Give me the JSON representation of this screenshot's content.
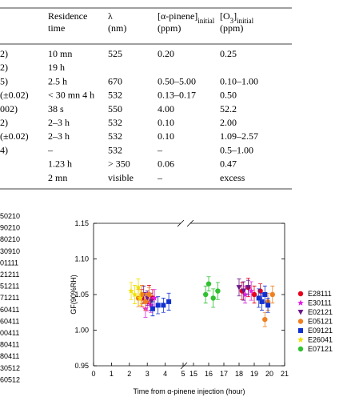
{
  "table": {
    "columns": [
      {
        "line1": [
          {
            "text": "Residence"
          }
        ],
        "line2": "time"
      },
      {
        "line1": [
          {
            "text": "λ"
          }
        ],
        "line2": "(nm)"
      },
      {
        "line1": [
          {
            "text": "[α-pinene]"
          },
          {
            "sub": "initial"
          }
        ],
        "line2": "(ppm)"
      },
      {
        "line1": [
          {
            "text": "[O"
          },
          {
            "sub": "3"
          },
          {
            "text": "]"
          },
          {
            "sub": "initial"
          }
        ],
        "line2": "(ppm)"
      }
    ],
    "rows": [
      [
        "2)",
        "10 mn",
        "525",
        "0.20",
        "0.25"
      ],
      [
        "2)",
        "19 h",
        null,
        null,
        null
      ],
      [
        "5)",
        "2.5 h",
        "670",
        "0.50–5.00",
        "0.10–1.00"
      ],
      [
        "(±0.02)",
        "< 30 mn 4 h",
        "532",
        "0.13–0.17",
        "0.50"
      ],
      [
        "002)",
        "38 s",
        "550",
        "4.00",
        "52.2"
      ],
      [
        "2)",
        "2–3 h",
        "532",
        "0.10",
        "2.00"
      ],
      [
        "(±0.02)",
        "2–3 h",
        "532",
        "0.10",
        "1.09–2.57"
      ],
      [
        "4)",
        "–",
        "532",
        "–",
        "0.5–1.00"
      ],
      [
        null,
        "1.23 h",
        "> 350",
        "0.06",
        "0.47"
      ],
      [
        null,
        "2 mn",
        "visible",
        "–",
        "excess"
      ]
    ]
  },
  "side_labels": [
    "50210",
    "90210",
    "80210",
    "30910",
    "01111",
    "21211",
    "51211",
    "71211",
    "60411",
    "60411",
    "00411",
    "80411",
    "80411",
    "30512",
    "60512"
  ],
  "chart_data": {
    "type": "scatter",
    "y_label": "GF(90%RH)",
    "x_label": "Time from α-pinene injection (hour)",
    "ylim": [
      0.95,
      1.15
    ],
    "yticks": [
      {
        "value": 0.95,
        "label": "0.95"
      },
      {
        "value": 1.0,
        "label": "1.00"
      },
      {
        "value": 1.05,
        "label": "1.05"
      },
      {
        "value": 1.1,
        "label": "1.10"
      },
      {
        "value": 1.15,
        "label": "1.15"
      }
    ],
    "x_segments": [
      {
        "xlim": [
          0,
          5.2
        ],
        "xticks": [
          0,
          1,
          2,
          3,
          4,
          5
        ]
      },
      {
        "xlim": [
          14.9,
          21
        ],
        "xticks": [
          15,
          16,
          17,
          18,
          19,
          20,
          21
        ]
      }
    ],
    "series": [
      {
        "name": "E28111",
        "color": "#e8001c",
        "marker": "circle",
        "x": [
          2.7,
          2.9,
          3.1,
          3.3,
          18.2,
          18.6,
          19.0,
          19.4
        ],
        "values": [
          1.045,
          1.04,
          1.05,
          1.045,
          1.055,
          1.06,
          1.05,
          1.055
        ],
        "errors": [
          0.012,
          0.01,
          0.013,
          0.012,
          0.012,
          0.013,
          0.012,
          0.01
        ]
      },
      {
        "name": "E30111",
        "color": "#e020e0",
        "marker": "star",
        "x": [
          2.9,
          3.0,
          3.2,
          3.4,
          18.4,
          18.8
        ],
        "values": [
          1.03,
          1.04,
          1.035,
          1.045,
          1.05,
          1.055
        ],
        "errors": [
          0.012,
          0.013,
          0.01,
          0.012,
          0.012,
          0.013
        ]
      },
      {
        "name": "E02121",
        "color": "#6a1a8a",
        "marker": "triangle",
        "x": [
          2.8,
          3.0,
          3.2,
          18.0,
          18.3,
          18.6
        ],
        "values": [
          1.05,
          1.045,
          1.04,
          1.06,
          1.055,
          1.06
        ],
        "errors": [
          0.012,
          0.01,
          0.012,
          0.012,
          0.013,
          0.01
        ]
      },
      {
        "name": "E05121",
        "color": "#f08020",
        "marker": "circle",
        "x": [
          2.5,
          2.7,
          2.9,
          3.1,
          19.7,
          19.9,
          20.2
        ],
        "values": [
          1.045,
          1.05,
          1.04,
          1.05,
          1.015,
          1.04,
          1.05
        ],
        "errors": [
          0.012,
          0.013,
          0.012,
          0.01,
          0.01,
          0.012,
          0.012
        ]
      },
      {
        "name": "E09121",
        "color": "#1030d0",
        "marker": "square",
        "x": [
          3.3,
          3.6,
          3.9,
          4.2,
          19.3,
          19.5,
          19.7,
          19.9
        ],
        "values": [
          1.03,
          1.035,
          1.035,
          1.04,
          1.045,
          1.04,
          1.05,
          1.035
        ],
        "errors": [
          0.01,
          0.012,
          0.01,
          0.012,
          0.013,
          0.012,
          0.012,
          0.01
        ]
      },
      {
        "name": "E26041",
        "color": "#f0e000",
        "marker": "star",
        "x": [
          2.1,
          2.3,
          2.5,
          2.6
        ],
        "values": [
          1.055,
          1.05,
          1.06,
          1.045
        ],
        "errors": [
          0.012,
          0.013,
          0.012,
          0.01
        ]
      },
      {
        "name": "E07121",
        "color": "#30c030",
        "marker": "circle",
        "x": [
          15.8,
          16.0,
          16.3,
          16.6
        ],
        "values": [
          1.05,
          1.065,
          1.045,
          1.055
        ],
        "errors": [
          0.012,
          0.01,
          0.013,
          0.012
        ]
      }
    ]
  }
}
